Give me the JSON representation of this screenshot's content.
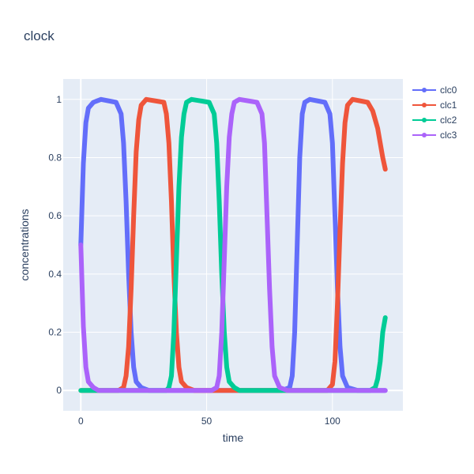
{
  "chart_data": {
    "type": "line",
    "title": "clock",
    "xlabel": "time",
    "ylabel": "concentrations",
    "xlim": [
      -7,
      128
    ],
    "ylim": [
      -0.07,
      1.07
    ],
    "x_ticks": [
      0,
      50,
      100
    ],
    "y_ticks": [
      0,
      0.2,
      0.4,
      0.6,
      0.8,
      1
    ],
    "y_tick_labels": [
      "0",
      "0.2",
      "0.4",
      "0.6",
      "0.8",
      "1"
    ],
    "grid": true,
    "legend_position": "top-right",
    "background": "#e5ecf6",
    "series": [
      {
        "name": "clc0",
        "color": "#636efa",
        "points": [
          [
            0,
            0.5
          ],
          [
            1,
            0.78
          ],
          [
            2,
            0.92
          ],
          [
            3,
            0.97
          ],
          [
            5,
            0.99
          ],
          [
            8,
            1.0
          ],
          [
            14,
            0.99
          ],
          [
            16,
            0.95
          ],
          [
            17,
            0.85
          ],
          [
            18,
            0.65
          ],
          [
            19,
            0.4
          ],
          [
            20,
            0.2
          ],
          [
            21,
            0.08
          ],
          [
            22,
            0.03
          ],
          [
            24,
            0.01
          ],
          [
            27,
            0.0
          ],
          [
            80,
            0.0
          ],
          [
            83,
            0.01
          ],
          [
            84,
            0.05
          ],
          [
            85,
            0.2
          ],
          [
            86,
            0.5
          ],
          [
            87,
            0.8
          ],
          [
            88,
            0.95
          ],
          [
            89,
            0.99
          ],
          [
            91,
            1.0
          ],
          [
            97,
            0.99
          ],
          [
            99,
            0.95
          ],
          [
            100,
            0.85
          ],
          [
            101,
            0.6
          ],
          [
            102,
            0.35
          ],
          [
            103,
            0.15
          ],
          [
            104,
            0.05
          ],
          [
            106,
            0.01
          ],
          [
            110,
            0.0
          ],
          [
            121,
            0.0
          ]
        ]
      },
      {
        "name": "clc1",
        "color": "#ef553b",
        "points": [
          [
            0,
            0.0
          ],
          [
            15,
            0.0
          ],
          [
            17,
            0.01
          ],
          [
            18,
            0.05
          ],
          [
            19,
            0.15
          ],
          [
            20,
            0.35
          ],
          [
            21,
            0.6
          ],
          [
            22,
            0.82
          ],
          [
            23,
            0.93
          ],
          [
            24,
            0.98
          ],
          [
            26,
            1.0
          ],
          [
            33,
            0.99
          ],
          [
            34,
            0.95
          ],
          [
            35,
            0.85
          ],
          [
            36,
            0.65
          ],
          [
            37,
            0.4
          ],
          [
            38,
            0.2
          ],
          [
            39,
            0.08
          ],
          [
            40,
            0.03
          ],
          [
            42,
            0.01
          ],
          [
            45,
            0.0
          ],
          [
            98,
            0.0
          ],
          [
            100,
            0.02
          ],
          [
            101,
            0.1
          ],
          [
            102,
            0.3
          ],
          [
            103,
            0.55
          ],
          [
            104,
            0.78
          ],
          [
            105,
            0.92
          ],
          [
            106,
            0.98
          ],
          [
            108,
            1.0
          ],
          [
            114,
            0.99
          ],
          [
            116,
            0.96
          ],
          [
            118,
            0.9
          ],
          [
            119,
            0.85
          ],
          [
            120,
            0.8
          ],
          [
            121,
            0.76
          ]
        ]
      },
      {
        "name": "clc2",
        "color": "#00cc96",
        "points": [
          [
            0,
            0.0
          ],
          [
            34,
            0.0
          ],
          [
            35,
            0.01
          ],
          [
            36,
            0.05
          ],
          [
            37,
            0.2
          ],
          [
            38,
            0.45
          ],
          [
            39,
            0.7
          ],
          [
            40,
            0.87
          ],
          [
            41,
            0.95
          ],
          [
            42,
            0.99
          ],
          [
            44,
            1.0
          ],
          [
            51,
            0.99
          ],
          [
            53,
            0.95
          ],
          [
            54,
            0.85
          ],
          [
            55,
            0.65
          ],
          [
            56,
            0.4
          ],
          [
            57,
            0.2
          ],
          [
            58,
            0.08
          ],
          [
            59,
            0.03
          ],
          [
            61,
            0.01
          ],
          [
            63,
            0.0
          ],
          [
            115,
            0.0
          ],
          [
            117,
            0.01
          ],
          [
            118,
            0.04
          ],
          [
            119,
            0.1
          ],
          [
            120,
            0.2
          ],
          [
            121,
            0.25
          ]
        ]
      },
      {
        "name": "clc3",
        "color": "#ab63fa",
        "points": [
          [
            0,
            0.5
          ],
          [
            1,
            0.22
          ],
          [
            2,
            0.08
          ],
          [
            3,
            0.03
          ],
          [
            5,
            0.01
          ],
          [
            7,
            0.0
          ],
          [
            52,
            0.0
          ],
          [
            54,
            0.01
          ],
          [
            55,
            0.05
          ],
          [
            56,
            0.2
          ],
          [
            57,
            0.45
          ],
          [
            58,
            0.7
          ],
          [
            59,
            0.87
          ],
          [
            60,
            0.95
          ],
          [
            61,
            0.99
          ],
          [
            63,
            1.0
          ],
          [
            70,
            0.99
          ],
          [
            72,
            0.95
          ],
          [
            73,
            0.85
          ],
          [
            74,
            0.6
          ],
          [
            75,
            0.35
          ],
          [
            76,
            0.15
          ],
          [
            77,
            0.05
          ],
          [
            79,
            0.01
          ],
          [
            82,
            0.0
          ],
          [
            121,
            0.0
          ]
        ]
      }
    ]
  }
}
